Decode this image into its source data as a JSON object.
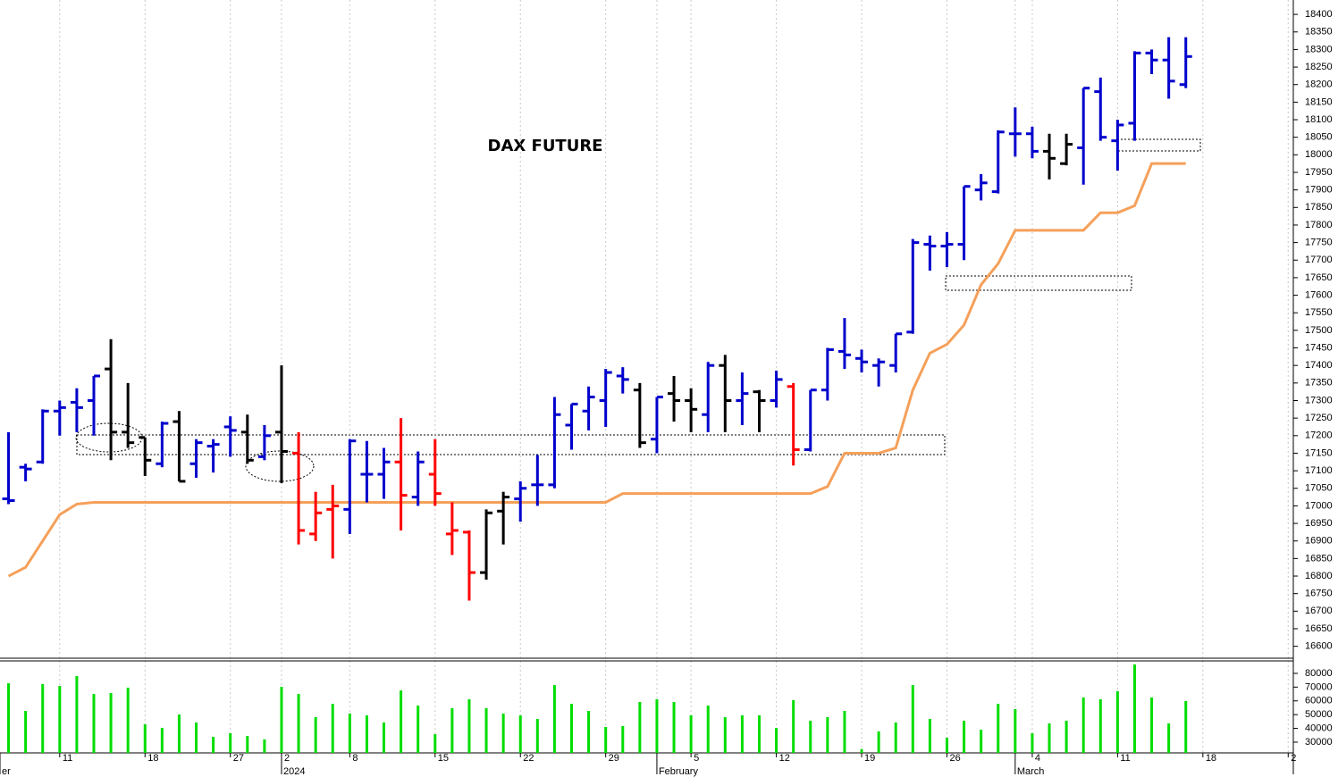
{
  "chart_data": [
    {
      "type": "ohlc",
      "title": "DAX FUTURE",
      "x": [
        0,
        1,
        2,
        3,
        4,
        5,
        6,
        7,
        8,
        9,
        10,
        11,
        12,
        13,
        14,
        15,
        16,
        17,
        18,
        19,
        20,
        21,
        22,
        23,
        24,
        25,
        26,
        27,
        28,
        29,
        30,
        31,
        32,
        33,
        34,
        35,
        36,
        37,
        38,
        39,
        40,
        41,
        42,
        43,
        44,
        45,
        46,
        47,
        48,
        49,
        50,
        51,
        52,
        53,
        54,
        55,
        56,
        57,
        58,
        59,
        60,
        61,
        62,
        63,
        64,
        65,
        66,
        67,
        68,
        69
      ],
      "open": [
        17020,
        17110,
        17125,
        17270,
        17295,
        17300,
        17390,
        17210,
        17195,
        17120,
        17240,
        17120,
        17170,
        17225,
        17210,
        17140,
        17210,
        17150,
        16920,
        16990,
        16990,
        17090,
        17090,
        17125,
        17025,
        17090,
        16920,
        16925,
        16810,
        16985,
        17020,
        17060,
        17060,
        17230,
        17270,
        17300,
        17370,
        17330,
        17190,
        17320,
        17300,
        17260,
        17400,
        17300,
        17325,
        17300,
        17340,
        17160,
        17330,
        17440,
        17420,
        17400,
        17400,
        17495,
        17745,
        17740,
        17745,
        17900,
        17895,
        18060,
        18060,
        18010,
        17975,
        18020,
        18180,
        18040,
        18090,
        18290,
        18270,
        18200
      ],
      "high": [
        17210,
        17120,
        17275,
        17300,
        17335,
        17370,
        17475,
        17350,
        17195,
        17240,
        17270,
        17190,
        17190,
        17255,
        17260,
        17230,
        17400,
        17210,
        17040,
        17060,
        17190,
        17185,
        17165,
        17250,
        17155,
        17190,
        17010,
        16930,
        16990,
        17040,
        17070,
        17145,
        17310,
        17290,
        17340,
        17390,
        17395,
        17350,
        17310,
        17370,
        17335,
        17410,
        17430,
        17380,
        17330,
        17385,
        17350,
        17330,
        17450,
        17535,
        17445,
        17420,
        17490,
        17760,
        17770,
        17780,
        17910,
        17945,
        18070,
        18135,
        18080,
        18060,
        18060,
        18190,
        18220,
        18100,
        18295,
        18300,
        18335,
        18335
      ],
      "low": [
        17005,
        17070,
        17120,
        17200,
        17210,
        17200,
        17130,
        17165,
        17085,
        17110,
        17070,
        17080,
        17095,
        17140,
        17120,
        17130,
        17065,
        16890,
        16900,
        16850,
        16920,
        17010,
        17020,
        16930,
        17000,
        17000,
        16860,
        16730,
        16790,
        16890,
        16955,
        17000,
        17050,
        17160,
        17215,
        17225,
        17320,
        17165,
        17150,
        17240,
        17210,
        17210,
        17210,
        17230,
        17210,
        17280,
        17115,
        17155,
        17300,
        17390,
        17380,
        17340,
        17380,
        17490,
        17670,
        17680,
        17700,
        17870,
        17890,
        17995,
        17990,
        17930,
        17970,
        17915,
        18040,
        17955,
        18040,
        18230,
        18160,
        18190
      ],
      "close": [
        17015,
        17105,
        17270,
        17280,
        17280,
        17370,
        17210,
        17180,
        17130,
        17235,
        17070,
        17180,
        17175,
        17215,
        17130,
        17200,
        17155,
        16930,
        16980,
        17000,
        17185,
        17090,
        17125,
        17030,
        17125,
        17035,
        16930,
        16810,
        16980,
        17025,
        17050,
        17060,
        17260,
        17290,
        17310,
        17380,
        17360,
        17180,
        17310,
        17300,
        17275,
        17400,
        17300,
        17320,
        17300,
        17360,
        17160,
        17330,
        17445,
        17430,
        17410,
        17410,
        17490,
        17750,
        17740,
        17745,
        17910,
        17920,
        18065,
        18060,
        18010,
        17990,
        18030,
        18190,
        18050,
        18085,
        18290,
        18270,
        18210,
        18280
      ],
      "bar_colors": [
        "#0000cc",
        "#0000cc",
        "#0000cc",
        "#0000cc",
        "#0000cc",
        "#0000cc",
        "#000000",
        "#000000",
        "#000000",
        "#0000cc",
        "#000000",
        "#0000cc",
        "#0000cc",
        "#0000cc",
        "#000000",
        "#0000cc",
        "#000000",
        "#ff0000",
        "#ff0000",
        "#ff0000",
        "#0000cc",
        "#0000cc",
        "#0000cc",
        "#ff0000",
        "#0000cc",
        "#ff0000",
        "#ff0000",
        "#ff0000",
        "#000000",
        "#000000",
        "#0000cc",
        "#0000cc",
        "#0000cc",
        "#0000cc",
        "#0000cc",
        "#0000cc",
        "#0000cc",
        "#000000",
        "#0000cc",
        "#000000",
        "#000000",
        "#0000cc",
        "#000000",
        "#0000cc",
        "#000000",
        "#0000cc",
        "#ff0000",
        "#0000cc",
        "#0000cc",
        "#0000cc",
        "#0000cc",
        "#0000cc",
        "#0000cc",
        "#0000cc",
        "#0000cc",
        "#0000cc",
        "#0000cc",
        "#0000cc",
        "#0000cc",
        "#0000cc",
        "#0000cc",
        "#000000",
        "#000000",
        "#0000cc",
        "#0000cc",
        "#0000cc",
        "#0000cc",
        "#0000cc",
        "#0000cc",
        "#0000cc"
      ],
      "overlay": {
        "color": "#f5a05a",
        "values": [
          16800,
          16825,
          16900,
          16975,
          17005,
          17010,
          17010,
          17010,
          17010,
          17010,
          17010,
          17010,
          17010,
          17010,
          17010,
          17010,
          17010,
          17010,
          17010,
          17010,
          17010,
          17010,
          17010,
          17010,
          17010,
          17010,
          17010,
          17010,
          17010,
          17010,
          17010,
          17010,
          17010,
          17010,
          17010,
          17010,
          17035,
          17035,
          17035,
          17035,
          17035,
          17035,
          17035,
          17035,
          17035,
          17035,
          17035,
          17035,
          17055,
          17150,
          17150,
          17150,
          17165,
          17330,
          17435,
          17460,
          17515,
          17630,
          17690,
          17785,
          17785,
          17785,
          17785,
          17785,
          17835,
          17835,
          17855,
          17975,
          17975,
          17975
        ]
      },
      "xlim": [
        -0.5,
        75.3
      ],
      "xticks": [
        {
          "value": 3,
          "label": "11"
        },
        {
          "value": 8,
          "label": "18"
        },
        {
          "value": 13,
          "label": "27"
        },
        {
          "value": 16,
          "label": "2"
        },
        {
          "value": 20,
          "label": "8"
        },
        {
          "value": 25,
          "label": "15"
        },
        {
          "value": 30,
          "label": "22"
        },
        {
          "value": 35,
          "label": "29"
        },
        {
          "value": 40,
          "label": "5"
        },
        {
          "value": 45,
          "label": "12"
        },
        {
          "value": 50,
          "label": "19"
        },
        {
          "value": 55,
          "label": "26"
        },
        {
          "value": 60,
          "label": "4"
        },
        {
          "value": 65,
          "label": "11"
        },
        {
          "value": 70,
          "label": "18"
        },
        {
          "value": 75,
          "label": "2"
        }
      ],
      "x_periods": [
        {
          "value": -0.5,
          "label": "er"
        },
        {
          "value": 16,
          "label": "2024"
        },
        {
          "value": 38,
          "label": "February"
        },
        {
          "value": 59,
          "label": "March"
        }
      ],
      "ylim": [
        16566,
        18441
      ],
      "yticks": [
        16600,
        16650,
        16700,
        16750,
        16800,
        16850,
        16900,
        16950,
        17000,
        17050,
        17100,
        17150,
        17200,
        17250,
        17300,
        17350,
        17400,
        17450,
        17500,
        17550,
        17600,
        17650,
        17700,
        17750,
        17800,
        17850,
        17900,
        17950,
        18000,
        18050,
        18100,
        18150,
        18200,
        18250,
        18300,
        18350,
        18400
      ],
      "grid": true
    },
    {
      "type": "bar",
      "color": "#00dd00",
      "values": [
        72800,
        52700,
        72200,
        70900,
        78000,
        65000,
        65700,
        69600,
        43000,
        40400,
        50100,
        44300,
        33900,
        36500,
        34500,
        32000,
        70200,
        65000,
        48200,
        57900,
        50800,
        49500,
        44300,
        67600,
        56600,
        35800,
        54700,
        61200,
        54700,
        50800,
        49500,
        46900,
        71500,
        57900,
        52700,
        41000,
        41700,
        59200,
        61200,
        59200,
        49500,
        56600,
        48200,
        49500,
        49500,
        40400,
        60500,
        45600,
        48200,
        52700,
        25000,
        37800,
        44300,
        71500,
        46900,
        33200,
        45600,
        39100,
        57900,
        54000,
        36500,
        43600,
        45600,
        62500,
        61200,
        67000,
        86500,
        62500,
        43600,
        59900
      ],
      "ylim": [
        22200,
        89060
      ],
      "yticks": [
        30000,
        40000,
        50000,
        60000,
        70000,
        80000
      ]
    }
  ]
}
